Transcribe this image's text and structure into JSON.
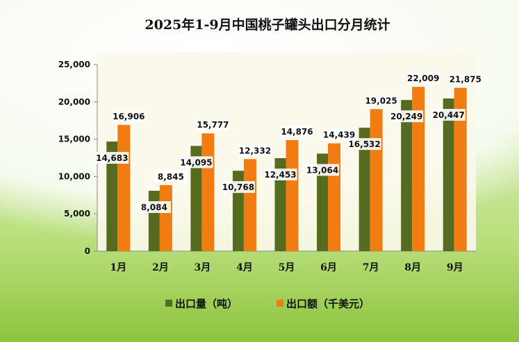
{
  "chart_data": {
    "type": "bar",
    "title": "2025年1-9月中国桃子罐头出口分月统计",
    "categories": [
      "1月",
      "2月",
      "3月",
      "4月",
      "5月",
      "6月",
      "7月",
      "8月",
      "9月"
    ],
    "series": [
      {
        "name": "出口量（吨）",
        "color": "#556b1f",
        "values": [
          14683,
          8084,
          14095,
          10768,
          12453,
          13064,
          16532,
          20249,
          20447
        ],
        "labels": [
          "14,683",
          "8,084",
          "14,095",
          "10,768",
          "12,453",
          "13,064",
          "16,532",
          "20,249",
          "20,447"
        ]
      },
      {
        "name": "出口额（千美元）",
        "color": "#f07c12",
        "values": [
          16906,
          8845,
          15777,
          12332,
          14876,
          14439,
          19025,
          22009,
          21875
        ],
        "labels": [
          "16,906",
          "8,845",
          "15,777",
          "12,332",
          "14,876",
          "14,439",
          "19,025",
          "22,009",
          "21,875"
        ]
      }
    ],
    "ylim": [
      0,
      25000
    ],
    "yticks": [
      "0",
      "5,000",
      "10,000",
      "15,000",
      "20,000",
      "25,000"
    ],
    "grid": false,
    "legend": "bottom"
  }
}
